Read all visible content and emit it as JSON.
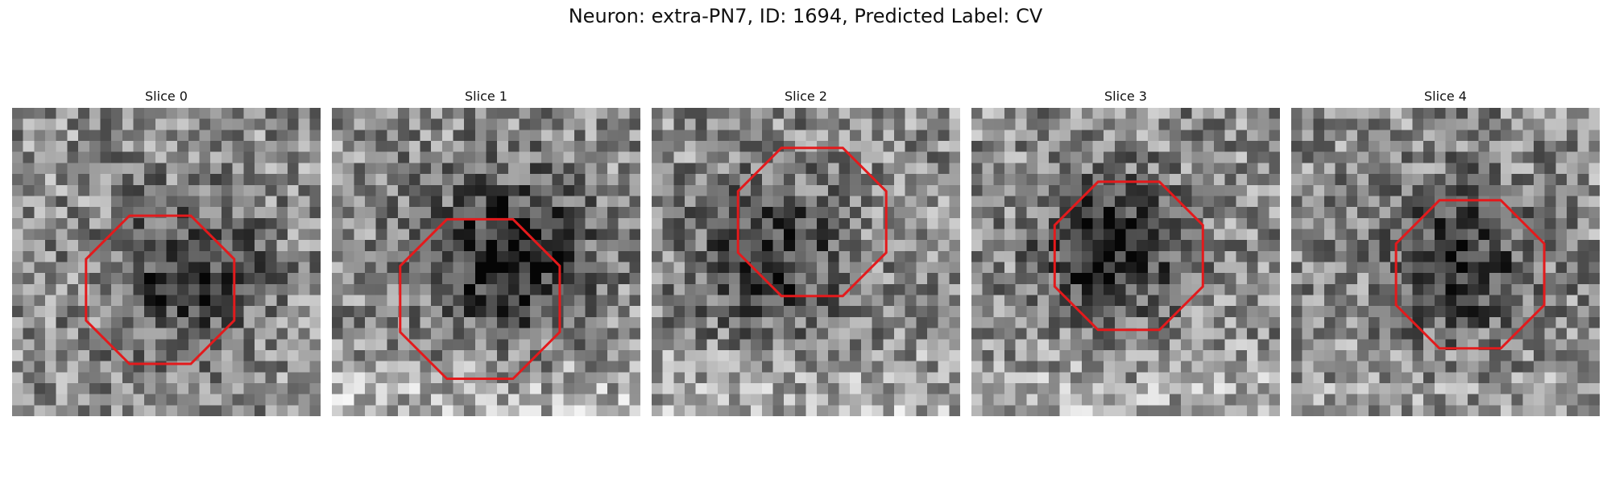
{
  "figure": {
    "title": "Neuron: extra-PN7, ID: 1694, Predicted Label: CV"
  },
  "colors": {
    "octagon": "#e31a1c",
    "background": "#ffffff"
  },
  "grid_size": 28,
  "slices": [
    {
      "label": "Slice 0",
      "dark_center": [
        0.57,
        0.54
      ],
      "dark_radius": 0.28,
      "dark_strength": 0.35,
      "bright_band": 0.0,
      "octagon_center": [
        0.48,
        0.59
      ],
      "octagon_radius": 0.26,
      "seed": 11
    },
    {
      "label": "Slice 1",
      "dark_center": [
        0.58,
        0.48
      ],
      "dark_radius": 0.3,
      "dark_strength": 0.45,
      "bright_band": 0.25,
      "octagon_center": [
        0.48,
        0.62
      ],
      "octagon_radius": 0.28,
      "seed": 23
    },
    {
      "label": "Slice 2",
      "dark_center": [
        0.38,
        0.48
      ],
      "dark_radius": 0.28,
      "dark_strength": 0.35,
      "bright_band": 0.2,
      "octagon_center": [
        0.52,
        0.37
      ],
      "octagon_radius": 0.26,
      "seed": 37
    },
    {
      "label": "Slice 3",
      "dark_center": [
        0.45,
        0.45
      ],
      "dark_radius": 0.26,
      "dark_strength": 0.45,
      "bright_band": 0.2,
      "octagon_center": [
        0.51,
        0.48
      ],
      "octagon_radius": 0.26,
      "seed": 41
    },
    {
      "label": "Slice 4",
      "dark_center": [
        0.55,
        0.5
      ],
      "dark_radius": 0.28,
      "dark_strength": 0.35,
      "bright_band": 0.1,
      "octagon_center": [
        0.58,
        0.54
      ],
      "octagon_radius": 0.26,
      "seed": 59
    }
  ]
}
